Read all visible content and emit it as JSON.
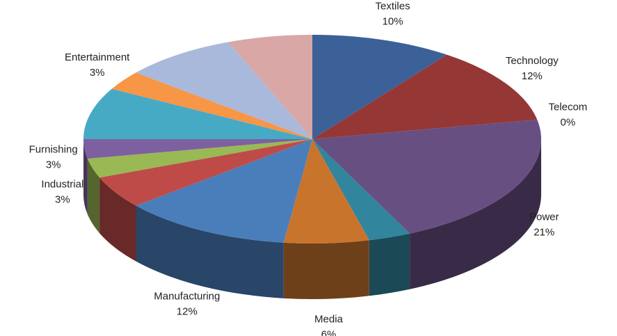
{
  "chart_data": {
    "type": "pie3d",
    "categories": [
      "Textiles",
      "Technology",
      "Telecom",
      "Power",
      null,
      "Media",
      "Manufacturing",
      null,
      "Industrial",
      "Furnishing",
      null,
      "Entertainment",
      null,
      null
    ],
    "values": [
      10,
      12,
      0,
      21,
      3,
      6,
      12,
      5,
      3,
      3,
      8,
      3,
      8,
      6
    ],
    "value_labels": [
      "10%",
      "12%",
      "0%",
      "21%",
      null,
      "6%",
      "12%",
      null,
      "3%",
      "3%",
      null,
      "3%",
      null,
      null
    ],
    "colors": [
      "#3c6198",
      "#953735",
      "#77a03a",
      "#674f82",
      "#31859c",
      "#c8742d",
      "#4a7ebb",
      "#be4b48",
      "#98b954",
      "#7d60a0",
      "#46aac5",
      "#f79646",
      "#a9b9db",
      "#d9a7a6"
    ]
  }
}
